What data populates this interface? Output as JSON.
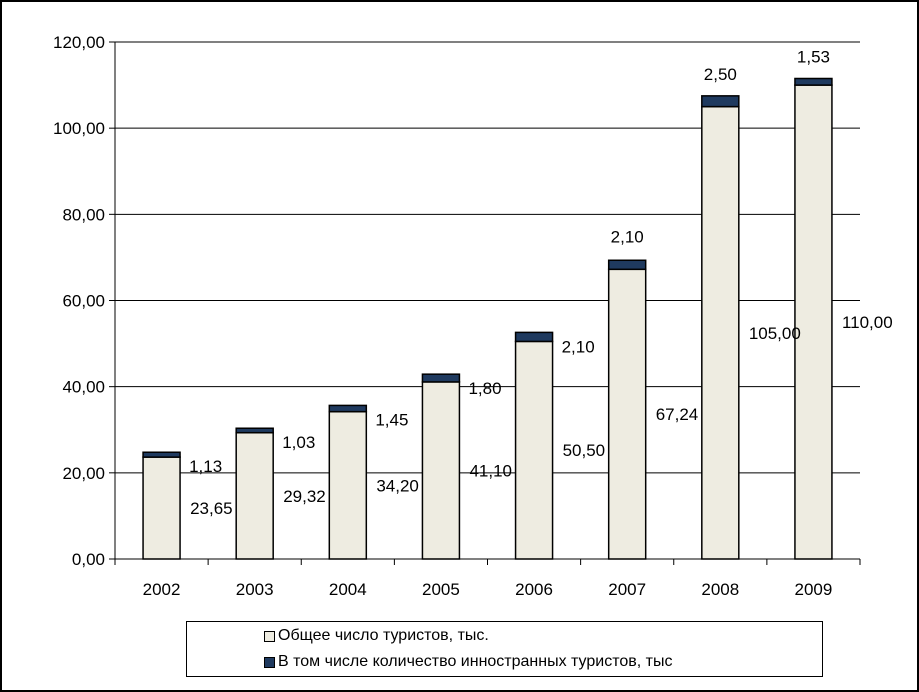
{
  "colors": {
    "total_fill": "#eeece1",
    "foreign_fill": "#1f3a5f",
    "grid": "#000000",
    "border": "#000000"
  },
  "chart_data": {
    "type": "bar",
    "stacked": true,
    "categories": [
      "2002",
      "2003",
      "2004",
      "2005",
      "2006",
      "2007",
      "2008",
      "2009"
    ],
    "series": [
      {
        "name": "Общее число туристов, тыс.",
        "values": [
          23.65,
          29.32,
          34.2,
          41.1,
          50.5,
          67.24,
          105.0,
          110.0
        ],
        "labels": [
          "23,65",
          "29,32",
          "34,20",
          "41,10",
          "50,50",
          "67,24",
          "105,00",
          "110,00"
        ],
        "color": "#eeece1"
      },
      {
        "name": "В том числе количество инностранных туристов, тыс",
        "values": [
          1.13,
          1.03,
          1.45,
          1.8,
          2.1,
          2.1,
          2.5,
          1.53
        ],
        "labels": [
          "1,13",
          "1,03",
          "1,45",
          "1,80",
          "2,10",
          "2,10",
          "2,50",
          "1,53"
        ],
        "color": "#1f3a5f"
      }
    ],
    "y_ticks": [
      "0,00",
      "20,00",
      "40,00",
      "60,00",
      "80,00",
      "100,00",
      "120,00"
    ],
    "ylim": [
      0,
      120
    ],
    "grid": true,
    "legend_position": "bottom",
    "title": "",
    "xlabel": "",
    "ylabel": ""
  }
}
